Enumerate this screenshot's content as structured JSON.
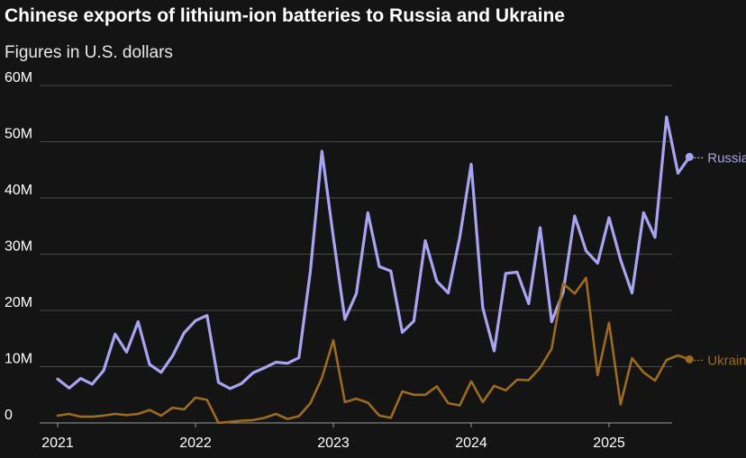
{
  "chart_data": {
    "type": "line",
    "title": "Chinese exports of lithium-ion batteries to Russia and Ukraine",
    "subtitle": "Figures in U.S. dollars",
    "xlabel": "",
    "ylabel": "",
    "ylim": [
      0,
      60
    ],
    "y_ticks": [
      {
        "value": 0,
        "label": "0"
      },
      {
        "value": 10,
        "label": "10M"
      },
      {
        "value": 20,
        "label": "20M"
      },
      {
        "value": 30,
        "label": "30M"
      },
      {
        "value": 40,
        "label": "40M"
      },
      {
        "value": 50,
        "label": "50M"
      },
      {
        "value": 60,
        "label": "60M"
      }
    ],
    "x_ticks": [
      {
        "value": 0,
        "label": "2021"
      },
      {
        "value": 12,
        "label": "2022"
      },
      {
        "value": 24,
        "label": "2023"
      },
      {
        "value": 36,
        "label": "2024"
      },
      {
        "value": 48,
        "label": "2025"
      }
    ],
    "x_unit": "months since Jan 2021",
    "y_unit": "millions of U.S. dollars",
    "grid": true,
    "series": [
      {
        "name": "Russia",
        "label": "Russia",
        "color": "#a9a4f2",
        "values": [
          7.8,
          6.2,
          7.9,
          6.9,
          9.3,
          15.8,
          12.6,
          18.0,
          10.4,
          9.0,
          11.9,
          16.0,
          18.2,
          19.1,
          7.2,
          6.1,
          7.0,
          8.9,
          9.8,
          10.8,
          10.6,
          11.6,
          27.0,
          48.3,
          33.0,
          18.4,
          23.0,
          37.4,
          27.8,
          27.0,
          16.1,
          18.1,
          32.4,
          25.2,
          23.1,
          33.0,
          46.0,
          20.5,
          12.8,
          26.6,
          26.8,
          21.2,
          34.7,
          18.0,
          23.2,
          36.8,
          30.6,
          28.4,
          36.5,
          29.0,
          23.1,
          37.4,
          33.0,
          54.4,
          44.4,
          47.3
        ]
      },
      {
        "name": "Ukraine",
        "label": "Ukraine",
        "color": "#9c6b20",
        "values": [
          1.3,
          1.6,
          1.1,
          1.1,
          1.3,
          1.6,
          1.4,
          1.6,
          2.3,
          1.3,
          2.7,
          2.4,
          4.5,
          4.1,
          0.0,
          0.2,
          0.4,
          0.5,
          0.9,
          1.6,
          0.7,
          1.2,
          3.5,
          8.0,
          14.7,
          3.7,
          4.3,
          3.6,
          1.3,
          0.9,
          5.6,
          5.0,
          5.0,
          6.5,
          3.5,
          3.1,
          7.4,
          3.7,
          6.6,
          5.8,
          7.7,
          7.6,
          9.8,
          13.2,
          24.8,
          23.0,
          25.8,
          8.5,
          17.8,
          3.3,
          11.5,
          9.0,
          7.5,
          11.2,
          12.0,
          11.3
        ]
      }
    ]
  }
}
